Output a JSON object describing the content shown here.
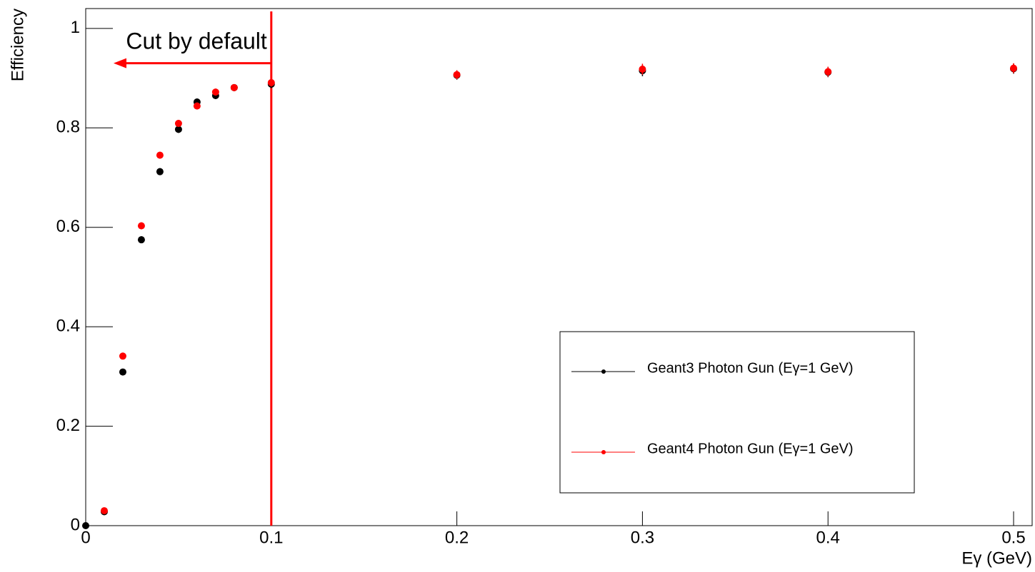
{
  "chart_data": {
    "type": "scatter",
    "x_label": "Eγ (GeV)",
    "y_label": "Efficiency",
    "xlim": [
      0,
      0.51
    ],
    "ylim": [
      0,
      1.04
    ],
    "xticks": [
      0,
      0.1,
      0.2,
      0.3,
      0.4,
      0.5
    ],
    "yticks": [
      0,
      0.2,
      0.4,
      0.6,
      0.8,
      1
    ],
    "legend": {
      "position": "lower right"
    },
    "series": [
      {
        "name": "Geant3 Photon Gun (Eγ=1 GeV)",
        "color": "#000000",
        "x": [
          0,
          0.01,
          0.02,
          0.03,
          0.04,
          0.05,
          0.06,
          0.07,
          0.08,
          0.1,
          0.2,
          0.3,
          0.4,
          0.5
        ],
        "values": [
          0,
          0.028,
          0.309,
          0.575,
          0.712,
          0.797,
          0.852,
          0.865,
          0.881,
          0.888,
          0.906,
          0.915,
          0.912,
          0.919
        ],
        "errors": [
          0,
          0.004,
          0.006,
          0.007,
          0.007,
          0.007,
          0.007,
          0.007,
          0.007,
          0.008,
          0.009,
          0.011,
          0.01,
          0.01
        ]
      },
      {
        "name": "Geant4 Photon Gun (Eγ=1 GeV)",
        "color": "#ff0000",
        "x": [
          0.01,
          0.02,
          0.03,
          0.04,
          0.05,
          0.06,
          0.07,
          0.08,
          0.1,
          0.2,
          0.3,
          0.4,
          0.5
        ],
        "values": [
          0.03,
          0.341,
          0.603,
          0.745,
          0.809,
          0.844,
          0.872,
          0.881,
          0.891,
          0.907,
          0.918,
          0.913,
          0.92
        ],
        "errors": [
          0.004,
          0.006,
          0.007,
          0.007,
          0.007,
          0.007,
          0.007,
          0.007,
          0.008,
          0.009,
          0.011,
          0.01,
          0.01
        ]
      }
    ],
    "cut_line": {
      "x": 0.1,
      "color": "#ff0000"
    },
    "annotation": {
      "text": "Cut by default",
      "arrow_end_x": 0.015,
      "arrow_y": 0.93
    }
  }
}
